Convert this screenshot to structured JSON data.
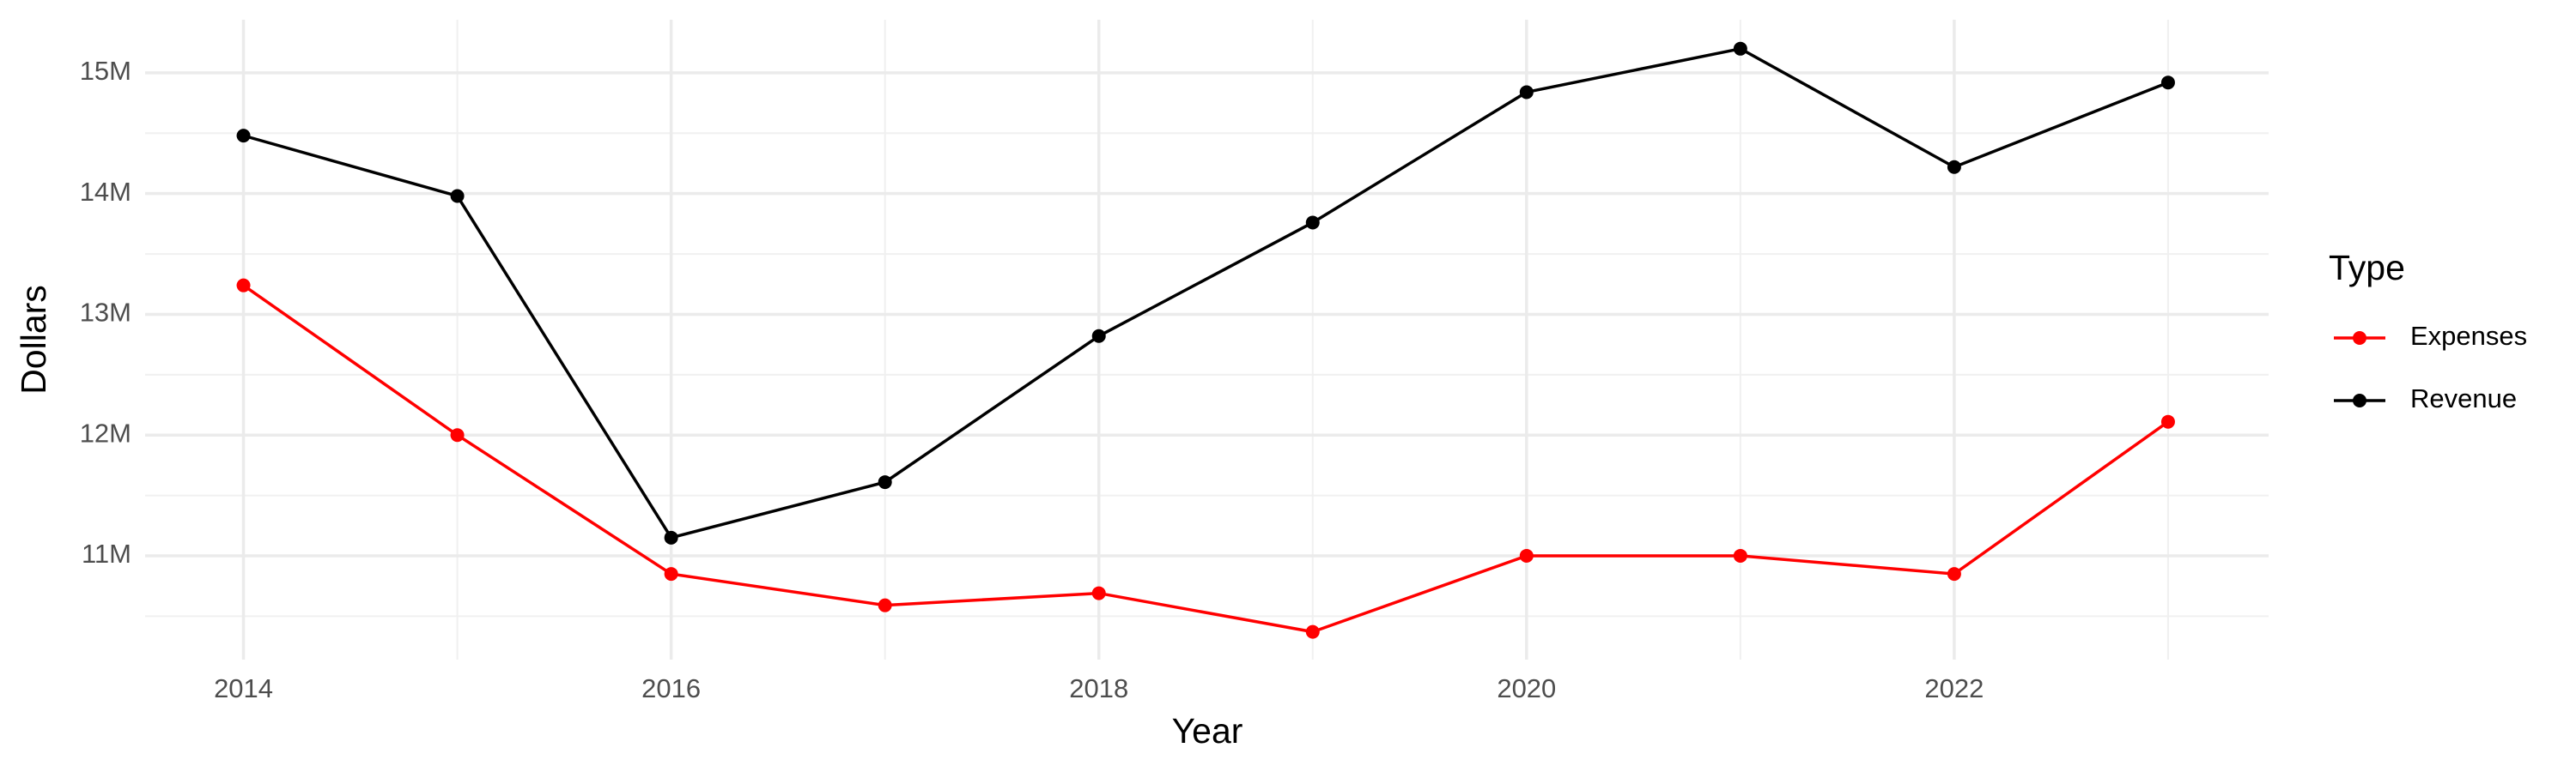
{
  "chart_data": {
    "type": "line",
    "x_label": "Year",
    "y_label": "Dollars",
    "legend_title": "Type",
    "legend_position": "right",
    "grid": true,
    "x": [
      2014,
      2015,
      2016,
      2017,
      2018,
      2019,
      2020,
      2021,
      2022,
      2023
    ],
    "series": [
      {
        "name": "Expenses",
        "color": "#ff0000",
        "values": [
          13240000,
          12000000,
          10850000,
          10590000,
          10690000,
          10370000,
          11000000,
          11000000,
          10850000,
          12110000
        ]
      },
      {
        "name": "Revenue",
        "color": "#000000",
        "values": [
          14480000,
          13980000,
          11150000,
          11610000,
          12820000,
          13760000,
          14840000,
          15200000,
          14220000,
          14920000
        ]
      }
    ],
    "xlim": [
      2013.54,
      2023.47
    ],
    "xticks": [
      2014,
      2016,
      2018,
      2020,
      2022
    ],
    "ylim": [
      10140000,
      15440000
    ],
    "yticks": [
      {
        "value": 11000000,
        "label": "11M"
      },
      {
        "value": 12000000,
        "label": "12M"
      },
      {
        "value": 13000000,
        "label": "13M"
      },
      {
        "value": 14000000,
        "label": "14M"
      },
      {
        "value": 15000000,
        "label": "15M"
      }
    ]
  }
}
